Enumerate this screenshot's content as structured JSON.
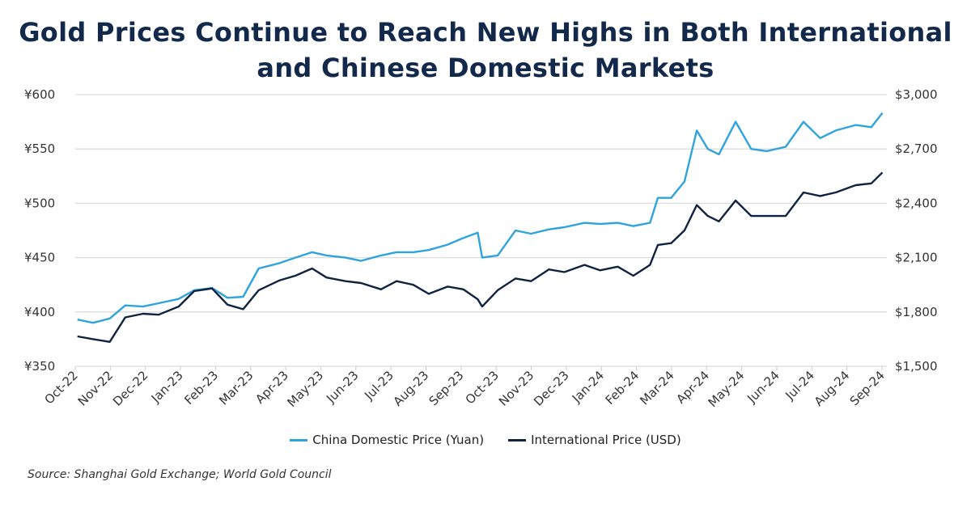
{
  "chart_data": {
    "type": "line",
    "title": "Gold Prices Continue to Reach New Highs in Both International and Chinese Domestic Markets",
    "source": "Source: Shanghai Gold Exchange; World Gold Council",
    "x_tick_labels": [
      "Oct-22",
      "Nov-22",
      "Dec-22",
      "Jan-23",
      "Feb-23",
      "Mar-23",
      "Apr-23",
      "May-23",
      "Jun-23",
      "Jul-23",
      "Aug-23",
      "Sep-23",
      "Oct-23",
      "Nov-23",
      "Dec-23",
      "Jan-24",
      "Feb-24",
      "Mar-24",
      "Apr-24",
      "May-24",
      "Jun-24",
      "Jul-24",
      "Aug-24",
      "Sep-24"
    ],
    "y_left": {
      "ticks": [
        "¥350",
        "¥400",
        "¥450",
        "¥500",
        "¥550",
        "¥600"
      ],
      "range": [
        350,
        600
      ]
    },
    "y_right": {
      "ticks": [
        "$1,500",
        "$1,800",
        "$2,100",
        "$2,400",
        "$2,700",
        "$3,000"
      ],
      "range": [
        1500,
        3000
      ]
    },
    "grid": true,
    "legend_position": "bottom",
    "x": [
      "2022-10-03",
      "2022-10-17",
      "2022-11-01",
      "2022-11-15",
      "2022-12-01",
      "2022-12-15",
      "2023-01-02",
      "2023-01-16",
      "2023-02-01",
      "2023-02-15",
      "2023-03-01",
      "2023-03-15",
      "2023-04-03",
      "2023-04-17",
      "2023-05-02",
      "2023-05-15",
      "2023-06-01",
      "2023-06-15",
      "2023-07-03",
      "2023-07-17",
      "2023-08-01",
      "2023-08-15",
      "2023-09-01",
      "2023-09-15",
      "2023-09-28",
      "2023-10-02",
      "2023-10-16",
      "2023-11-01",
      "2023-11-15",
      "2023-12-01",
      "2023-12-15",
      "2024-01-02",
      "2024-01-16",
      "2024-02-01",
      "2024-02-15",
      "2024-03-01",
      "2024-03-08",
      "2024-03-20",
      "2024-04-01",
      "2024-04-12",
      "2024-04-22",
      "2024-05-02",
      "2024-05-17",
      "2024-05-31",
      "2024-06-14",
      "2024-07-01",
      "2024-07-17",
      "2024-08-01",
      "2024-08-15",
      "2024-09-02",
      "2024-09-16",
      "2024-09-26"
    ],
    "series": [
      {
        "name": "China Domestic Price (Yuan)",
        "axis": "left",
        "color": "#2ea3dc",
        "values": [
          393,
          390,
          394,
          406,
          405,
          408,
          412,
          420,
          422,
          413,
          414,
          440,
          445,
          450,
          455,
          452,
          450,
          447,
          452,
          455,
          455,
          457,
          462,
          468,
          473,
          450,
          452,
          475,
          472,
          476,
          478,
          482,
          481,
          482,
          479,
          482,
          505,
          505,
          520,
          567,
          550,
          545,
          575,
          550,
          548,
          552,
          575,
          560,
          567,
          572,
          570,
          583
        ]
      },
      {
        "name": "International Price (USD)",
        "axis": "right",
        "color": "#0f2340",
        "values": [
          1665,
          1650,
          1635,
          1770,
          1790,
          1785,
          1830,
          1915,
          1930,
          1840,
          1815,
          1920,
          1975,
          2000,
          2040,
          1990,
          1970,
          1960,
          1925,
          1970,
          1950,
          1900,
          1940,
          1925,
          1870,
          1830,
          1920,
          1985,
          1970,
          2035,
          2020,
          2060,
          2030,
          2050,
          2000,
          2060,
          2170,
          2180,
          2250,
          2390,
          2330,
          2300,
          2415,
          2330,
          2330,
          2330,
          2460,
          2440,
          2460,
          2500,
          2510,
          2570
        ]
      }
    ]
  }
}
